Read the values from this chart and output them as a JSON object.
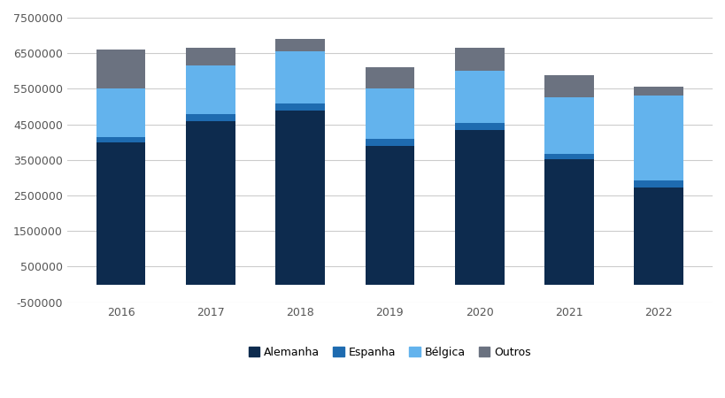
{
  "years": [
    2016,
    2017,
    2018,
    2019,
    2020,
    2021,
    2022
  ],
  "alemanha": [
    4000000,
    4600000,
    4900000,
    3900000,
    4350000,
    3520000,
    2720000
  ],
  "espanha": [
    150000,
    200000,
    200000,
    200000,
    200000,
    150000,
    200000
  ],
  "belgica": [
    1350000,
    1350000,
    1450000,
    1400000,
    1450000,
    1600000,
    2400000
  ],
  "outros": [
    1100000,
    500000,
    350000,
    600000,
    650000,
    620000,
    250000
  ],
  "colors": {
    "alemanha": "#0d2b4e",
    "espanha": "#1e6bb0",
    "belgica": "#63b3ed",
    "outros": "#6b7280"
  },
  "ylim": [
    -500000,
    7500000
  ],
  "yticks": [
    -500000,
    500000,
    1500000,
    2500000,
    3500000,
    4500000,
    5500000,
    6500000,
    7500000
  ],
  "bar_width": 0.55,
  "background_color": "#ffffff",
  "grid_color": "#cccccc",
  "font_size_ticks": 9,
  "font_size_legend": 9
}
